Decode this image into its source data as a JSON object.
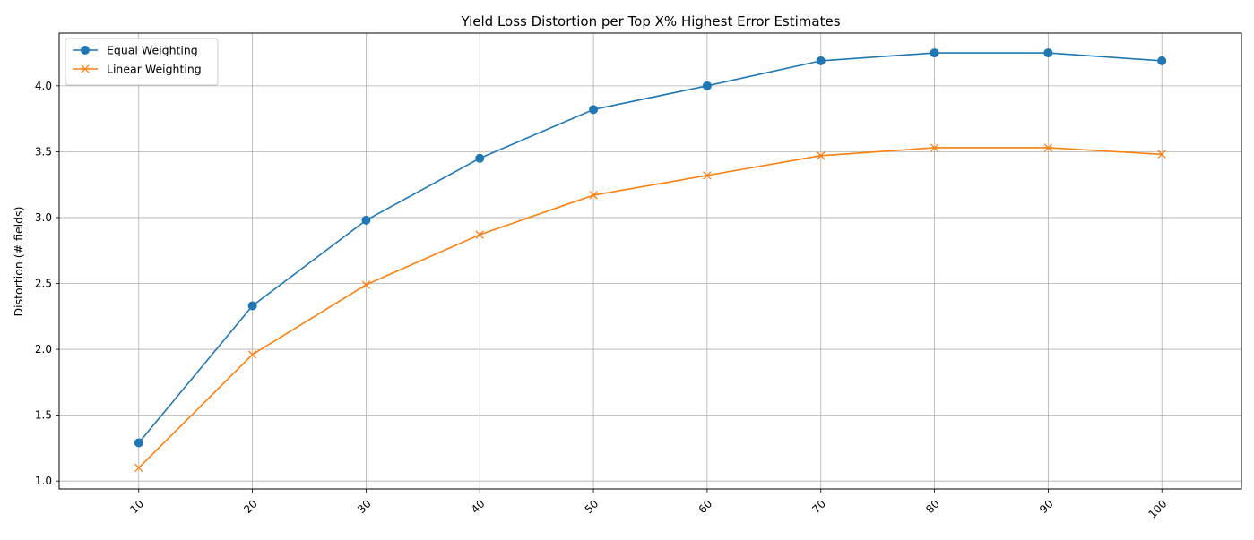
{
  "chart_data": {
    "type": "line",
    "title": "Yield Loss Distortion per Top X% Highest Error Estimates",
    "xlabel": "",
    "ylabel": "Distortion (# fields)",
    "x": [
      10,
      20,
      30,
      40,
      50,
      60,
      70,
      80,
      90,
      100
    ],
    "x_tick_labels": [
      "10",
      "20",
      "30",
      "40",
      "50",
      "60",
      "70",
      "80",
      "90",
      "100"
    ],
    "y_ticks": [
      1.0,
      1.5,
      2.0,
      2.5,
      3.0,
      3.5,
      4.0
    ],
    "y_tick_labels": [
      "1.0",
      "1.5",
      "2.0",
      "2.5",
      "3.0",
      "3.5",
      "4.0"
    ],
    "xlim": [
      3,
      107
    ],
    "ylim": [
      0.94,
      4.4
    ],
    "grid": true,
    "legend_position": "upper-left",
    "series": [
      {
        "name": "Equal Weighting",
        "color": "#1f77b4",
        "marker": "circle",
        "values": [
          1.29,
          2.33,
          2.98,
          3.45,
          3.82,
          4.0,
          4.19,
          4.25,
          4.25,
          4.19
        ]
      },
      {
        "name": "Linear Weighting",
        "color": "#ff7f0e",
        "marker": "x",
        "values": [
          1.1,
          1.96,
          2.49,
          2.87,
          3.17,
          3.32,
          3.47,
          3.53,
          3.53,
          3.48
        ]
      }
    ]
  }
}
